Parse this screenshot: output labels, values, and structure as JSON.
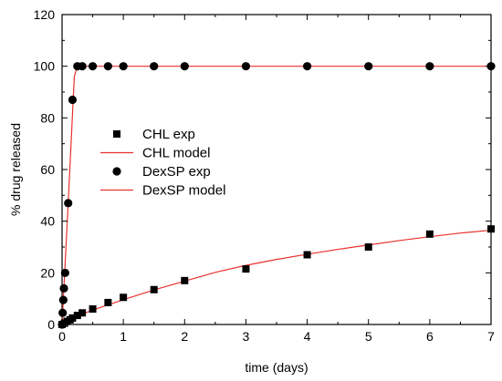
{
  "chart_data": {
    "type": "scatter",
    "title": "",
    "xlabel": "time (days)",
    "ylabel": "% drug released",
    "xlim": [
      0,
      7
    ],
    "ylim": [
      0,
      120
    ],
    "x_ticks": [
      0,
      1,
      2,
      3,
      4,
      5,
      6,
      7
    ],
    "y_ticks": [
      0,
      20,
      40,
      60,
      80,
      100,
      120
    ],
    "grid": false,
    "legend_position": "center-left",
    "series": [
      {
        "name": "CHL exp",
        "kind": "points",
        "marker": "square",
        "color": "#000000",
        "x": [
          0,
          0.04,
          0.08,
          0.13,
          0.17,
          0.25,
          0.33,
          0.5,
          0.75,
          1.0,
          1.5,
          2.0,
          3.0,
          4.0,
          5.0,
          6.0,
          7.0
        ],
        "y": [
          0,
          0.5,
          1.2,
          1.8,
          2.5,
          3.5,
          4.5,
          6,
          8.5,
          10.5,
          13.5,
          17,
          21.5,
          27,
          30,
          35,
          37
        ]
      },
      {
        "name": "CHL model",
        "kind": "line",
        "color": "#e8322f",
        "x": [
          0,
          0.1,
          0.25,
          0.5,
          0.75,
          1.0,
          1.5,
          2.0,
          2.5,
          3.0,
          3.5,
          4.0,
          4.5,
          5.0,
          5.5,
          6.0,
          6.5,
          7.0
        ],
        "y": [
          0,
          1.3,
          3.2,
          5.6,
          7.6,
          9.6,
          13.4,
          16.8,
          20.2,
          22.9,
          25.2,
          27.2,
          29.1,
          30.8,
          32.5,
          34.0,
          35.4,
          36.5
        ]
      },
      {
        "name": "DexSP exp",
        "kind": "points",
        "marker": "circle",
        "color": "#000000",
        "x": [
          0,
          0.01,
          0.02,
          0.03,
          0.05,
          0.1,
          0.17,
          0.25,
          0.33,
          0.5,
          0.75,
          1.0,
          1.5,
          2.0,
          3.0,
          4.0,
          5.0,
          6.0,
          7.0
        ],
        "y": [
          0,
          4.5,
          9.5,
          14,
          20,
          47,
          87,
          100,
          100,
          100,
          100,
          100,
          100,
          100,
          100,
          100,
          100,
          100,
          100
        ]
      },
      {
        "name": "DexSP model",
        "kind": "line",
        "color": "#e8322f",
        "x": [
          0,
          0.1,
          0.2,
          0.25,
          0.5,
          1.0,
          2.0,
          3.0,
          4.0,
          5.0,
          6.0,
          7.0
        ],
        "y": [
          0,
          47,
          96,
          100,
          100,
          100,
          100,
          100,
          100,
          100,
          100,
          100
        ]
      }
    ]
  }
}
